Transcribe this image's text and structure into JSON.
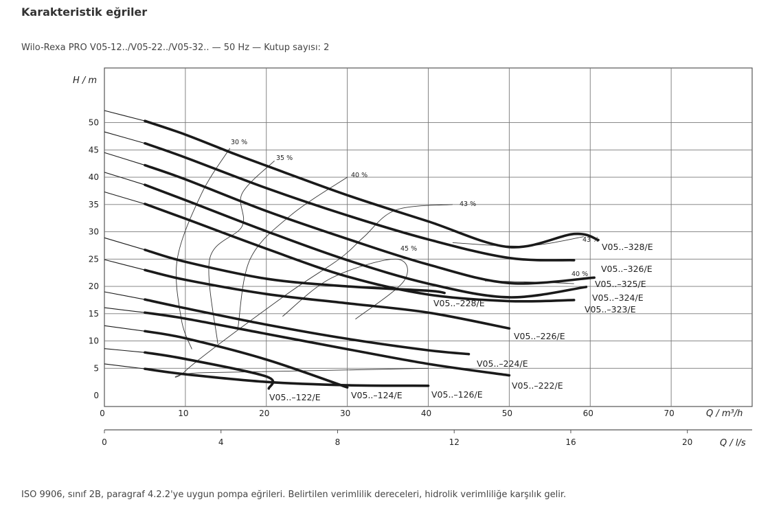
{
  "page": {
    "title": "Karakteristik eğriler",
    "subtitle": "Wilo-Rexa PRO V05-12../V05-22../V05-32.. — 50 Hz — Kutup sayısı: 2",
    "footnote": "ISO 9906, sınıf 2B, paragraf 4.2.2'ye uygun pompa eğrileri. Belirtilen verimlilik dereceleri, hidrolik verimliliğe karşılık gelir."
  },
  "chart_data": {
    "type": "line",
    "ylabel": "H / m",
    "xlabel": "Q / m³/h",
    "x2label": "Q / l/s",
    "xlim": [
      0,
      80
    ],
    "ylim": [
      -2,
      60
    ],
    "x_ticks": [
      0,
      10,
      20,
      30,
      40,
      50,
      60,
      70
    ],
    "y_ticks": [
      0,
      5,
      10,
      15,
      20,
      25,
      30,
      35,
      40,
      45,
      50
    ],
    "x2_ticks": [
      0,
      4,
      8,
      12,
      16,
      20
    ],
    "grid": true,
    "line_color": "#1a1a1a",
    "series": [
      {
        "name": "V05..-328/E",
        "x": [
          0,
          5,
          10,
          16,
          20,
          30,
          40,
          50,
          58,
          61
        ],
        "y": [
          52.2,
          50.3,
          47.8,
          44.3,
          42.1,
          36.7,
          31.9,
          27.2,
          29.6,
          28.5
        ],
        "bold_from": 5
      },
      {
        "name": "V05..-326/E",
        "x": [
          0,
          5,
          10,
          20,
          30,
          40,
          50,
          58
        ],
        "y": [
          48.3,
          46.2,
          43.6,
          38.0,
          33.0,
          28.6,
          25.2,
          24.8
        ],
        "bold_from": 5
      },
      {
        "name": "V05..-325/E",
        "x": [
          0,
          5,
          10,
          20,
          30,
          40,
          50,
          60.5
        ],
        "y": [
          44.5,
          42.2,
          39.6,
          33.8,
          28.7,
          24.0,
          20.6,
          21.6
        ],
        "bold_from": 5
      },
      {
        "name": "V05..-324/E",
        "x": [
          0,
          5,
          10,
          20,
          30,
          40,
          50,
          59.5
        ],
        "y": [
          40.9,
          38.6,
          35.8,
          30.1,
          24.8,
          20.5,
          18.0,
          19.9
        ],
        "bold_from": 5
      },
      {
        "name": "V05..-323/E",
        "x": [
          0,
          5,
          10,
          20,
          30,
          40,
          50,
          58
        ],
        "y": [
          37.3,
          35.1,
          32.4,
          26.9,
          21.8,
          18.5,
          17.3,
          17.5
        ],
        "bold_from": 5
      },
      {
        "name": "V05..-228/E",
        "x": [
          0,
          5,
          10,
          20,
          30,
          40,
          42
        ],
        "y": [
          28.9,
          26.7,
          24.5,
          21.4,
          20.0,
          19.2,
          18.8
        ],
        "bold_from": 5
      },
      {
        "name": "V05..-226/E",
        "x": [
          0,
          5,
          10,
          20,
          30,
          40,
          50
        ],
        "y": [
          24.9,
          23.0,
          21.2,
          18.6,
          16.9,
          15.2,
          12.3
        ],
        "bold_from": 5
      },
      {
        "name": "V05..-224/E",
        "x": [
          0,
          5,
          10,
          20,
          30,
          40,
          45
        ],
        "y": [
          19.0,
          17.6,
          16.0,
          13.0,
          10.4,
          8.3,
          7.6
        ],
        "bold_from": 5
      },
      {
        "name": "V05..-222/E",
        "x": [
          0,
          5,
          10,
          20,
          30,
          40,
          50
        ],
        "y": [
          16.1,
          15.2,
          14.1,
          11.3,
          8.5,
          5.8,
          3.7
        ],
        "bold_from": 5
      },
      {
        "name": "V05..-122/E",
        "x": [
          0,
          5,
          10,
          20,
          20.3
        ],
        "y": [
          8.6,
          7.9,
          6.7,
          3.5,
          1.3
        ],
        "bold_from": 5
      },
      {
        "name": "V05..-124/E",
        "x": [
          0,
          5,
          10,
          20,
          30
        ],
        "y": [
          12.8,
          11.8,
          10.5,
          6.6,
          1.5
        ],
        "bold_from": 5
      },
      {
        "name": "V05..-126/E",
        "x": [
          0,
          5,
          10,
          20,
          30,
          40
        ],
        "y": [
          5.8,
          4.9,
          3.9,
          2.5,
          1.9,
          1.8
        ],
        "bold_from": 5
      }
    ],
    "efficiency_lines": [
      {
        "label": "30 %",
        "x": [
          15.5,
          12,
          9,
          9.5,
          10.8
        ],
        "y": [
          45.3,
          37,
          25,
          14,
          8.5
        ]
      },
      {
        "label": "35 %",
        "x": [
          21,
          17,
          17,
          13,
          14
        ],
        "y": [
          43,
          37,
          31,
          25,
          9.5
        ]
      },
      {
        "label": "40 %",
        "x": [
          30,
          23,
          18,
          16.5
        ],
        "y": [
          40,
          33,
          25,
          12.5
        ]
      },
      {
        "label": "43 %",
        "x": [
          43,
          36,
          32,
          29,
          22,
          10,
          12.5,
          40
        ],
        "y": [
          35,
          34,
          29,
          25,
          18,
          4.5,
          4.2,
          5.0
        ]
      },
      {
        "label": "43 %",
        "x": [
          43,
          52,
          59.2
        ],
        "y": [
          28,
          27.4,
          29.1
        ]
      },
      {
        "label": "45 %",
        "x": [
          31,
          37,
          36,
          28,
          22
        ],
        "y": [
          14,
          21,
          25,
          21.5,
          14.5
        ]
      },
      {
        "label": "40 %",
        "x": [
          47,
          55,
          58
        ],
        "y": [
          21,
          20.7,
          20.5
        ]
      }
    ],
    "series_labels": [
      "V05..–328/E",
      "V05..–326/E",
      "V05..–325/E",
      "V05..–324/E",
      "V05..–323/E",
      "V05..–228/E",
      "V05..–226/E",
      "V05..–224/E",
      "V05..–222/E",
      "V05..–122/E",
      "V05..–124/E",
      "V05..–126/E"
    ],
    "efficiency_labels": [
      "30 %",
      "35 %",
      "40 %",
      "43 %",
      "45 %",
      "43 %",
      "40 %"
    ]
  }
}
